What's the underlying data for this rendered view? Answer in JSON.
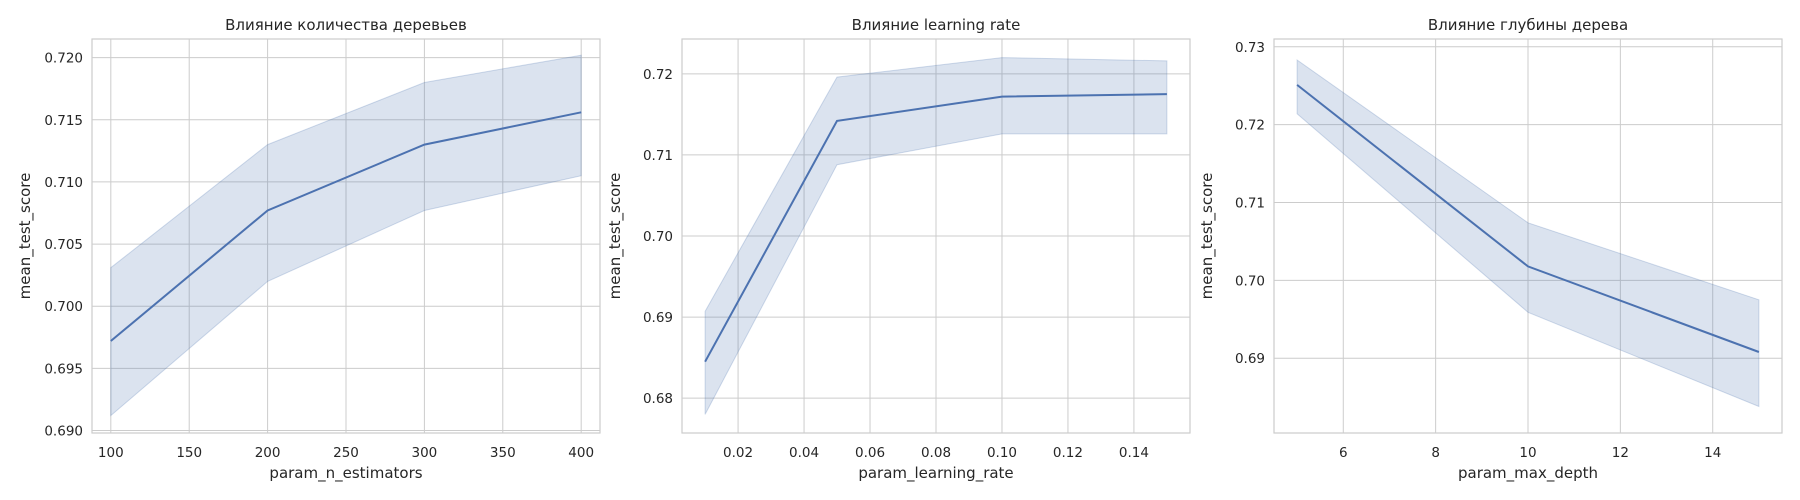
{
  "chart_data": [
    {
      "type": "line",
      "title": "Влияние количества деревьев",
      "xlabel": "param_n_estimators",
      "ylabel": "mean_test_score",
      "x": [
        100,
        200,
        300,
        400
      ],
      "series": [
        {
          "values": [
            0.6972,
            0.7077,
            0.713,
            0.7156
          ],
          "ci_low": [
            0.6912,
            0.702,
            0.7077,
            0.7105
          ],
          "ci_high": [
            0.7031,
            0.713,
            0.718,
            0.7202
          ]
        }
      ],
      "xlim": [
        88,
        412
      ],
      "ylim": [
        0.6898,
        0.7215
      ],
      "xticks": [
        100,
        150,
        200,
        250,
        300,
        350,
        400
      ],
      "xtick_labels": [
        "100",
        "150",
        "200",
        "250",
        "300",
        "350",
        "400"
      ],
      "yticks": [
        0.69,
        0.695,
        0.7,
        0.705,
        0.71,
        0.715,
        0.72
      ],
      "ytick_labels": [
        "0.690",
        "0.695",
        "0.700",
        "0.705",
        "0.710",
        "0.715",
        "0.720"
      ],
      "grid": true
    },
    {
      "type": "line",
      "title": "Влияние learning rate",
      "xlabel": "param_learning_rate",
      "ylabel": "mean_test_score",
      "x": [
        0.01,
        0.05,
        0.1,
        0.15
      ],
      "series": [
        {
          "values": [
            0.6845,
            0.7142,
            0.7172,
            0.7175
          ],
          "ci_low": [
            0.678,
            0.7088,
            0.7126,
            0.7126
          ],
          "ci_high": [
            0.6907,
            0.7196,
            0.722,
            0.7216
          ]
        }
      ],
      "xlim": [
        0.003,
        0.157
      ],
      "ylim": [
        0.6757,
        0.7243
      ],
      "xticks": [
        0.02,
        0.04,
        0.06,
        0.08,
        0.1,
        0.12,
        0.14
      ],
      "xtick_labels": [
        "0.02",
        "0.04",
        "0.06",
        "0.08",
        "0.10",
        "0.12",
        "0.14"
      ],
      "yticks": [
        0.68,
        0.69,
        0.7,
        0.71,
        0.72
      ],
      "ytick_labels": [
        "0.68",
        "0.69",
        "0.70",
        "0.71",
        "0.72"
      ],
      "grid": true
    },
    {
      "type": "line",
      "title": "Влияние глубины дерева",
      "xlabel": "param_max_depth",
      "ylabel": "mean_test_score",
      "x": [
        5,
        10,
        15
      ],
      "series": [
        {
          "values": [
            0.7251,
            0.7018,
            0.6908
          ],
          "ci_low": [
            0.7214,
            0.6959,
            0.6838
          ],
          "ci_high": [
            0.7283,
            0.7074,
            0.6975
          ]
        }
      ],
      "xlim": [
        4.5,
        15.5
      ],
      "ylim": [
        0.6804,
        0.731
      ],
      "xticks": [
        6,
        8,
        10,
        12,
        14
      ],
      "xtick_labels": [
        "6",
        "8",
        "10",
        "12",
        "14"
      ],
      "yticks": [
        0.69,
        0.7,
        0.71,
        0.72,
        0.73
      ],
      "ytick_labels": [
        "0.69",
        "0.70",
        "0.71",
        "0.72",
        "0.73"
      ],
      "grid": true
    }
  ]
}
